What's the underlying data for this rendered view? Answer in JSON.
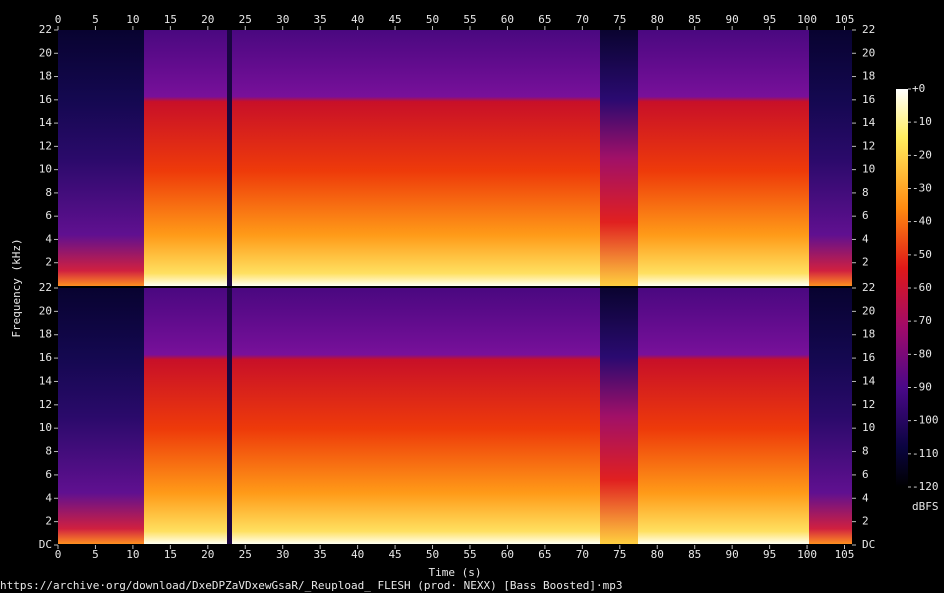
{
  "chart_data": {
    "type": "spectrogram",
    "xlabel": "Time (s)",
    "ylabel": "Frequency (kHz)",
    "footer": "https://archive·org/download/DxeDPZaVDxewGsaR/_Reupload_ FLESH (prod· NEXX) [Bass Boosted]·mp3",
    "xlim": [
      0,
      106
    ],
    "xticks": [
      0,
      5,
      10,
      15,
      20,
      25,
      30,
      35,
      40,
      45,
      50,
      55,
      60,
      65,
      70,
      75,
      80,
      85,
      90,
      95,
      100,
      105
    ],
    "panels": [
      {
        "ylim": [
          0,
          22
        ],
        "yticks": [
          2,
          4,
          6,
          8,
          10,
          12,
          14,
          16,
          18,
          20,
          22
        ]
      },
      {
        "ylim": [
          0,
          22
        ],
        "yticks": [
          {
            "value": 0,
            "label": "DC"
          },
          2,
          4,
          6,
          8,
          10,
          12,
          14,
          16,
          18,
          20,
          22
        ]
      }
    ],
    "colorbar": {
      "label": "dBFS",
      "lim": [
        -120,
        0
      ],
      "ticks": [
        {
          "value": 0,
          "label": "+0"
        },
        -10,
        -20,
        -30,
        -40,
        -50,
        -60,
        -70,
        -80,
        -90,
        -100,
        -110,
        -120
      ]
    }
  }
}
